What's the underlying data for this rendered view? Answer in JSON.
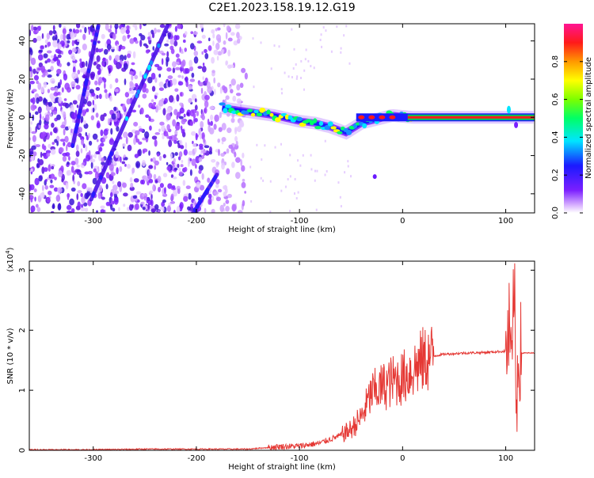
{
  "title": "C2E1.2023.158.19.12.G19",
  "colors": {
    "snr_line": "#e53935",
    "spectrum_low": "#7b1fff",
    "spectrum_high": "#ff1744"
  },
  "chart_data": [
    {
      "type": "heatmap",
      "name": "spectrogram",
      "xlabel": "Height of straight line (km)",
      "ylabel": "Frequency (Hz)",
      "xlim": [
        -362,
        128
      ],
      "ylim": [
        -50,
        49
      ],
      "xticks": [
        -300,
        -200,
        -100,
        0,
        100
      ],
      "xtick_labels": [
        "-300",
        "-200",
        "-100",
        "0",
        "100"
      ],
      "yticks": [
        -40,
        -20,
        0,
        20,
        40
      ],
      "ytick_labels": [
        "-40",
        "-20",
        "0",
        "20",
        "40"
      ],
      "colorbar": {
        "label": "Normalized spectral amplitude",
        "range": [
          0,
          1
        ],
        "ticks": [
          0.0,
          0.2,
          0.4,
          0.6,
          0.8
        ],
        "tick_labels": [
          "0.0",
          "0.2",
          "0.4",
          "0.6",
          "0.8"
        ],
        "colormap": "rainbow (white-purple-blue-cyan-green-yellow-red-magenta)"
      },
      "features": {
        "noise_region_x": [
          -362,
          -150
        ],
        "sloped_traces": [
          {
            "x": [
              -320,
              -295
            ],
            "y": [
              -15,
              48
            ]
          },
          {
            "x": [
              -302,
              -228
            ],
            "y": [
              -43,
              48
            ]
          },
          {
            "x": [
              -203,
              -180
            ],
            "y": [
              -50,
              -30
            ]
          }
        ],
        "carrier_band": {
          "x": [
            -175,
            128
          ],
          "center_y": [
            5,
            3,
            1,
            -2,
            -3,
            -5,
            -8,
            -3,
            -1,
            1,
            0,
            0,
            0
          ],
          "sample_x": [
            -175,
            -150,
            -125,
            -100,
            -85,
            -70,
            -55,
            -40,
            -25,
            -10,
            10,
            60,
            128
          ]
        },
        "isolated_points": [
          {
            "x": -27,
            "y": -31
          }
        ]
      }
    },
    {
      "type": "line",
      "name": "snr",
      "xlabel": "Height of straight line (km)",
      "ylabel": "SNR (10 * v/v)",
      "yexponent": "(x10",
      "yexponent_power": "4",
      "yexponent_close": ")",
      "xlim": [
        -362,
        128
      ],
      "ylim": [
        0,
        3.15
      ],
      "xticks": [
        -300,
        -200,
        -100,
        0,
        100
      ],
      "xtick_labels": [
        "-300",
        "-200",
        "-100",
        "0",
        "100"
      ],
      "yticks": [
        0,
        1,
        2,
        3
      ],
      "ytick_labels": [
        "0",
        "1",
        "2",
        "3"
      ],
      "series": [
        {
          "x": [
            -362,
            -300,
            -250,
            -200,
            -150,
            -120,
            -100,
            -80,
            -60,
            -50,
            -40,
            -30,
            -20,
            -10,
            0,
            10,
            20,
            30,
            40,
            60,
            80,
            100,
            104,
            106,
            108,
            110,
            112,
            115,
            128
          ],
          "y": [
            0.01,
            0.01,
            0.02,
            0.02,
            0.02,
            0.06,
            0.07,
            0.12,
            0.25,
            0.35,
            0.55,
            0.95,
            1.05,
            1.15,
            1.2,
            1.35,
            1.5,
            1.57,
            1.6,
            1.62,
            1.63,
            1.65,
            2.0,
            1.0,
            3.1,
            0.6,
            1.6,
            1.62,
            1.62
          ]
        }
      ]
    }
  ]
}
